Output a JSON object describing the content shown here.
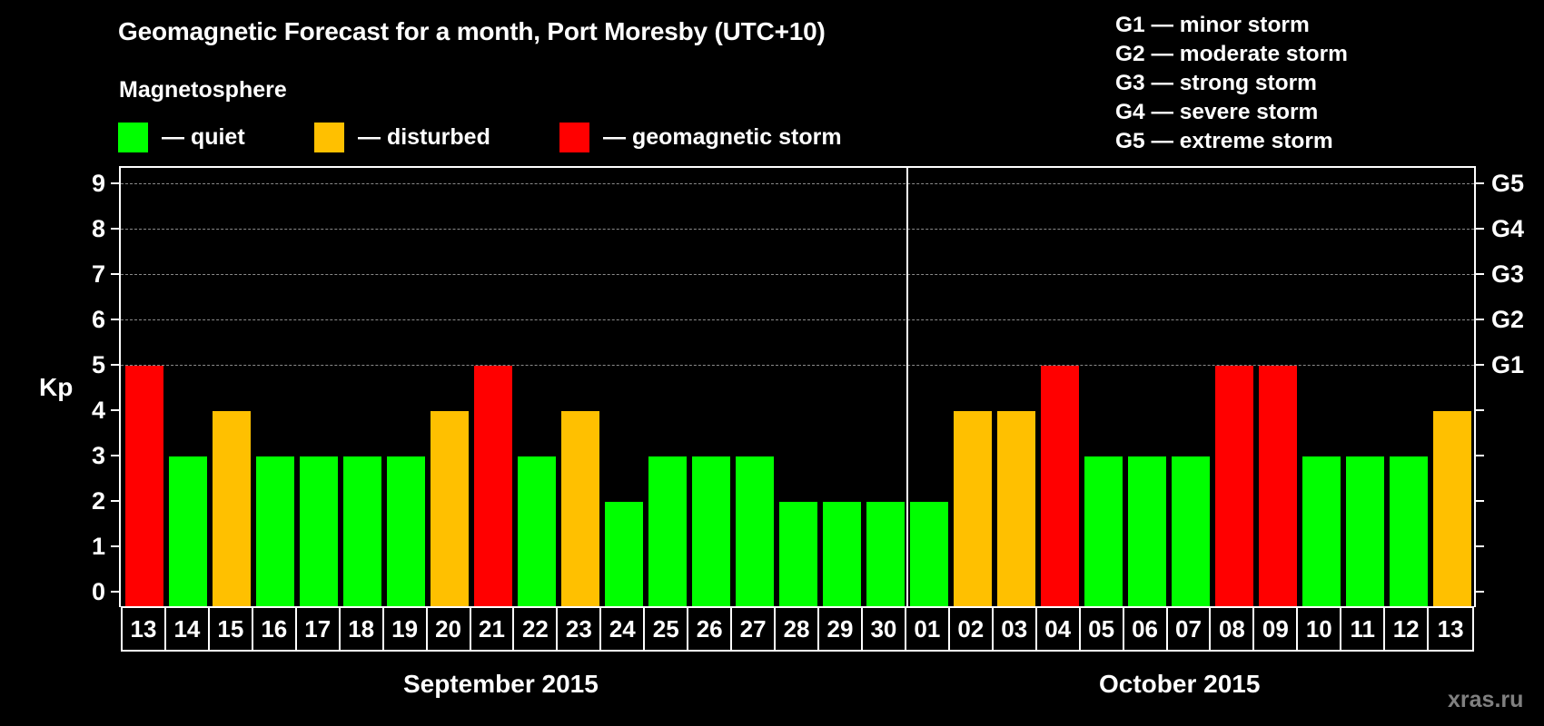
{
  "title": "Geomagnetic Forecast for a month, Port Moresby (UTC+10)",
  "magnetosphere_legend": {
    "title": "Magnetosphere",
    "items": [
      {
        "label": "— quiet",
        "color": "#00FF00"
      },
      {
        "label": "— disturbed",
        "color": "#FFC000"
      },
      {
        "label": "— geomagnetic storm",
        "color": "#FF0000"
      }
    ]
  },
  "storm_scale_legend": [
    "G1 — minor storm",
    "G2 — moderate storm",
    "G3 — strong storm",
    "G4 — severe storm",
    "G5 — extreme storm"
  ],
  "axis": {
    "ylabel": "Kp",
    "yticks": [
      "0",
      "1",
      "2",
      "3",
      "4",
      "5",
      "6",
      "7",
      "8",
      "9"
    ],
    "right_labels": [
      {
        "kp": 5,
        "label": "G1"
      },
      {
        "kp": 6,
        "label": "G2"
      },
      {
        "kp": 7,
        "label": "G3"
      },
      {
        "kp": 8,
        "label": "G4"
      },
      {
        "kp": 9,
        "label": "G5"
      }
    ]
  },
  "months": [
    {
      "label": "September 2015"
    },
    {
      "label": "October 2015"
    }
  ],
  "watermark": "xras.ru",
  "colors": {
    "quiet": "#00FF00",
    "disturbed": "#FFC000",
    "storm": "#FF0000",
    "background": "#000000",
    "grid": "#8A8A8A",
    "watermark": "#808080"
  },
  "chart_data": {
    "type": "bar",
    "title": "Geomagnetic Forecast for a month, Port Moresby (UTC+10)",
    "xlabel": "",
    "ylabel": "Kp",
    "ylim": [
      0,
      9
    ],
    "grid": "horizontal dashed at Kp 5-9",
    "categories": [
      "13",
      "14",
      "15",
      "16",
      "17",
      "18",
      "19",
      "20",
      "21",
      "22",
      "23",
      "24",
      "25",
      "26",
      "27",
      "28",
      "29",
      "30",
      "01",
      "02",
      "03",
      "04",
      "05",
      "06",
      "07",
      "08",
      "09",
      "10",
      "11",
      "12",
      "13"
    ],
    "month_groups": [
      {
        "label": "September 2015",
        "from_index": 0,
        "to_index": 17
      },
      {
        "label": "October 2015",
        "from_index": 18,
        "to_index": 30
      }
    ],
    "values": [
      5,
      3,
      4,
      3,
      3,
      3,
      3,
      4,
      5,
      3,
      4,
      2,
      3,
      3,
      3,
      2,
      2,
      2,
      2,
      4,
      4,
      5,
      3,
      3,
      3,
      5,
      5,
      3,
      3,
      3,
      4
    ],
    "status": [
      "storm",
      "quiet",
      "disturbed",
      "quiet",
      "quiet",
      "quiet",
      "quiet",
      "disturbed",
      "storm",
      "quiet",
      "disturbed",
      "quiet",
      "quiet",
      "quiet",
      "quiet",
      "quiet",
      "quiet",
      "quiet",
      "quiet",
      "disturbed",
      "disturbed",
      "storm",
      "quiet",
      "quiet",
      "quiet",
      "storm",
      "storm",
      "quiet",
      "quiet",
      "quiet",
      "disturbed"
    ],
    "legend": [
      "quiet",
      "disturbed",
      "geomagnetic storm"
    ],
    "secondary_axis_labels": {
      "5": "G1",
      "6": "G2",
      "7": "G3",
      "8": "G4",
      "9": "G5"
    }
  }
}
